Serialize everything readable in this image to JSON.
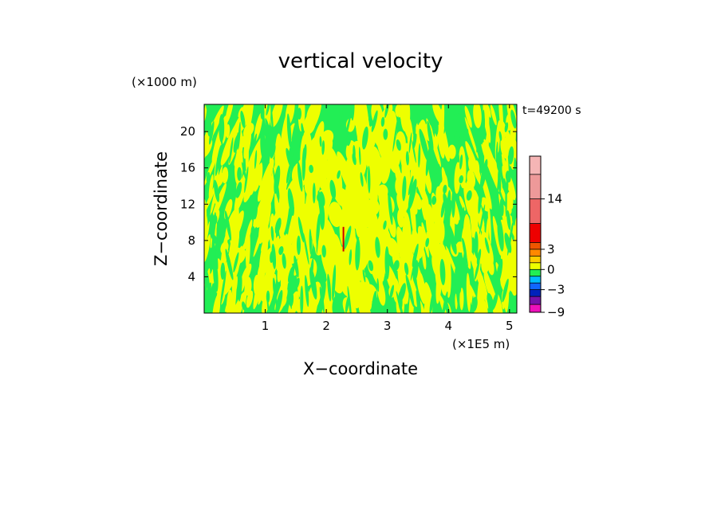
{
  "chart_data": {
    "type": "heatmap",
    "title": "vertical velocity",
    "xlabel": "X−coordinate",
    "ylabel": "Z−coordinate",
    "x_unit": "(×1E5 m)",
    "y_unit": "(×1000 m)",
    "time_label": "t=49200 s",
    "xlim": [
      0,
      5.12
    ],
    "ylim": [
      0,
      23
    ],
    "x_ticks": [
      1,
      2,
      3,
      4,
      5
    ],
    "y_ticks": [
      4,
      8,
      12,
      16,
      20
    ],
    "dominant_fields": [
      {
        "range": [
          -1,
          0
        ],
        "color": "#22ee55"
      },
      {
        "range": [
          0,
          1
        ],
        "color": "#eeff00"
      }
    ],
    "feature": {
      "x": 2.28,
      "z_range": [
        6.8,
        9.5
      ],
      "color": "#cc0000",
      "type": "updraft"
    },
    "colorbar": {
      "levels": [
        -9,
        -7,
        -5,
        -3,
        -2,
        -1,
        0,
        1,
        2,
        3,
        4,
        9,
        14,
        19,
        24
      ],
      "colors": [
        "#ee11bb",
        "#7711aa",
        "#0022bb",
        "#1166ff",
        "#00bbff",
        "#22ee55",
        "#eeff00",
        "#ffcc00",
        "#ff8800",
        "#ee5500",
        "#ee0000",
        "#ee6666",
        "#ee9999",
        "#f5b5b5"
      ],
      "tick_labels": [
        {
          "value": -9,
          "label": "−9"
        },
        {
          "value": -3,
          "label": "−3"
        },
        {
          "value": 0,
          "label": "0"
        },
        {
          "value": 3,
          "label": "3"
        },
        {
          "value": 14,
          "label": "14"
        }
      ]
    }
  }
}
